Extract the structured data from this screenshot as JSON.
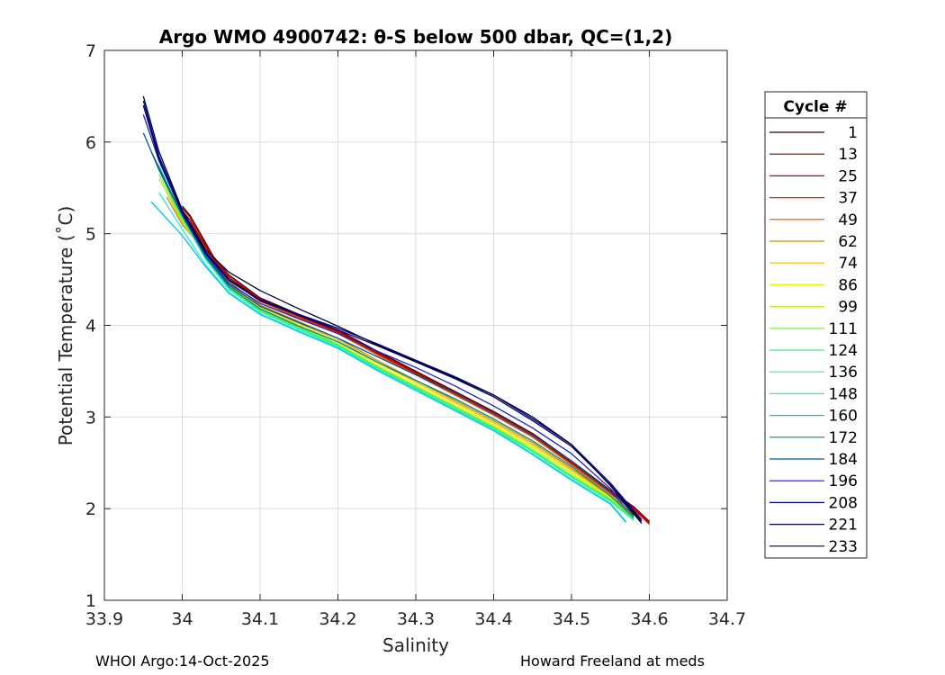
{
  "footer": {
    "left": "WHOI Argo:14-Oct-2025",
    "right": "Howard Freeland at meds"
  },
  "chart_data": {
    "type": "line",
    "title": "Argo WMO 4900742: θ-S below 500 dbar,  QC=(1,2)",
    "xlabel": "Salinity",
    "ylabel": "Potential Temperature (˚C)",
    "xlim": [
      33.9,
      34.7
    ],
    "ylim": [
      1,
      7
    ],
    "xticks": [
      33.9,
      34.0,
      34.1,
      34.2,
      34.3,
      34.4,
      34.5,
      34.6,
      34.7
    ],
    "xtick_labels": [
      "33.9",
      "34",
      "34.1",
      "34.2",
      "34.3",
      "34.4",
      "34.5",
      "34.6",
      "34.7"
    ],
    "yticks": [
      1,
      2,
      3,
      4,
      5,
      6,
      7
    ],
    "ytick_labels": [
      "1",
      "2",
      "3",
      "4",
      "5",
      "6",
      "7"
    ],
    "grid": true,
    "legend": {
      "title": "Cycle #",
      "placement": "outside-right",
      "entries": [
        "1",
        "13",
        "25",
        "37",
        "49",
        "62",
        "74",
        "86",
        "99",
        "111",
        "124",
        "136",
        "148",
        "160",
        "172",
        "184",
        "196",
        "208",
        "221",
        "233"
      ],
      "colors": [
        "#2a0000",
        "#7a0000",
        "#c80000",
        "#e02000",
        "#e45000",
        "#c89000",
        "#e0c000",
        "#f0f000",
        "#b8f020",
        "#70f040",
        "#40f070",
        "#30f0b0",
        "#20f0e0",
        "#00c8d8",
        "#008a8a",
        "#005a9a",
        "#2020c0",
        "#000090",
        "#000060",
        "#000030"
      ]
    },
    "series": [
      {
        "name": "1",
        "salinity": [
          34.0,
          34.01,
          34.02,
          34.03,
          34.04,
          34.06,
          34.1,
          34.15,
          34.2,
          34.25,
          34.3,
          34.35,
          34.4,
          34.45,
          34.5,
          34.55,
          34.58,
          34.6
        ],
        "theta": [
          5.3,
          5.2,
          5.05,
          4.9,
          4.75,
          4.55,
          4.3,
          4.12,
          3.95,
          3.72,
          3.5,
          3.28,
          3.06,
          2.82,
          2.52,
          2.2,
          2.02,
          1.86
        ]
      },
      {
        "name": "13",
        "salinity": [
          34.0,
          34.01,
          34.02,
          34.03,
          34.04,
          34.06,
          34.1,
          34.15,
          34.2,
          34.25,
          34.3,
          34.35,
          34.4,
          34.45,
          34.5,
          34.55,
          34.58,
          34.6
        ],
        "theta": [
          5.25,
          5.15,
          5.0,
          4.86,
          4.72,
          4.52,
          4.28,
          4.1,
          3.93,
          3.7,
          3.48,
          3.26,
          3.04,
          2.8,
          2.5,
          2.18,
          2.0,
          1.84
        ]
      },
      {
        "name": "25",
        "salinity": [
          34.0,
          34.01,
          34.02,
          34.03,
          34.04,
          34.06,
          34.1,
          34.15,
          34.2,
          34.25,
          34.3,
          34.35,
          34.4,
          34.45,
          34.5,
          34.55,
          34.58,
          34.6
        ],
        "theta": [
          5.28,
          5.18,
          5.03,
          4.88,
          4.74,
          4.54,
          4.29,
          4.11,
          3.94,
          3.71,
          3.49,
          3.27,
          3.05,
          2.81,
          2.51,
          2.19,
          2.01,
          1.85
        ]
      },
      {
        "name": "37",
        "salinity": [
          34.0,
          34.01,
          34.02,
          34.03,
          34.04,
          34.06,
          34.1,
          34.15,
          34.2,
          34.25,
          34.3,
          34.35,
          34.4,
          34.45,
          34.5,
          34.55,
          34.58,
          34.6
        ],
        "theta": [
          5.22,
          5.12,
          4.98,
          4.84,
          4.7,
          4.5,
          4.27,
          4.09,
          3.92,
          3.69,
          3.47,
          3.25,
          3.03,
          2.79,
          2.49,
          2.17,
          1.99,
          1.83
        ]
      },
      {
        "name": "49",
        "salinity": [
          34.0,
          34.02,
          34.04,
          34.06,
          34.1,
          34.15,
          34.2,
          34.25,
          34.3,
          34.35,
          34.4,
          34.45,
          34.5,
          34.55,
          34.58,
          34.59
        ],
        "theta": [
          5.2,
          4.97,
          4.7,
          4.5,
          4.26,
          4.08,
          3.91,
          3.68,
          3.46,
          3.24,
          3.02,
          2.78,
          2.48,
          2.16,
          1.98,
          1.86
        ]
      },
      {
        "name": "62",
        "salinity": [
          33.98,
          34.0,
          34.03,
          34.06,
          34.1,
          34.15,
          34.2,
          34.25,
          34.3,
          34.35,
          34.4,
          34.45,
          34.5,
          34.55,
          34.58
        ],
        "theta": [
          5.4,
          5.1,
          4.8,
          4.48,
          4.22,
          4.04,
          3.86,
          3.62,
          3.4,
          3.18,
          2.96,
          2.72,
          2.44,
          2.14,
          1.94
        ]
      },
      {
        "name": "74",
        "salinity": [
          33.98,
          34.0,
          34.03,
          34.06,
          34.1,
          34.15,
          34.2,
          34.25,
          34.3,
          34.35,
          34.4,
          34.45,
          34.5,
          34.55,
          34.58
        ],
        "theta": [
          5.45,
          5.12,
          4.78,
          4.46,
          4.2,
          4.02,
          3.84,
          3.6,
          3.38,
          3.16,
          2.94,
          2.7,
          2.42,
          2.13,
          1.92
        ]
      },
      {
        "name": "86",
        "salinity": [
          33.98,
          34.0,
          34.03,
          34.06,
          34.1,
          34.15,
          34.2,
          34.25,
          34.3,
          34.35,
          34.4,
          34.45,
          34.5,
          34.55,
          34.58
        ],
        "theta": [
          5.5,
          5.14,
          4.76,
          4.44,
          4.19,
          4.0,
          3.82,
          3.58,
          3.36,
          3.14,
          2.92,
          2.68,
          2.4,
          2.12,
          1.91
        ]
      },
      {
        "name": "99",
        "salinity": [
          33.97,
          34.0,
          34.03,
          34.06,
          34.1,
          34.15,
          34.2,
          34.25,
          34.3,
          34.35,
          34.4,
          34.45,
          34.5,
          34.55,
          34.58
        ],
        "theta": [
          5.6,
          5.15,
          4.75,
          4.42,
          4.18,
          3.99,
          3.8,
          3.56,
          3.34,
          3.12,
          2.9,
          2.66,
          2.38,
          2.11,
          1.9
        ]
      },
      {
        "name": "111",
        "salinity": [
          33.97,
          34.0,
          34.03,
          34.06,
          34.1,
          34.15,
          34.2,
          34.25,
          34.3,
          34.35,
          34.4,
          34.45,
          34.5,
          34.55,
          34.58
        ],
        "theta": [
          5.65,
          5.16,
          4.74,
          4.41,
          4.17,
          3.98,
          3.79,
          3.55,
          3.33,
          3.11,
          2.89,
          2.64,
          2.36,
          2.1,
          1.89
        ]
      },
      {
        "name": "124",
        "salinity": [
          33.97,
          34.0,
          34.03,
          34.06,
          34.1,
          34.15,
          34.2,
          34.25,
          34.3,
          34.35,
          34.4,
          34.45,
          34.5,
          34.55,
          34.58
        ],
        "theta": [
          5.7,
          5.17,
          4.73,
          4.4,
          4.16,
          3.97,
          3.78,
          3.54,
          3.32,
          3.1,
          2.88,
          2.63,
          2.35,
          2.09,
          1.88
        ]
      },
      {
        "name": "136",
        "salinity": [
          33.97,
          34.0,
          34.03,
          34.06,
          34.1,
          34.15,
          34.2,
          34.25,
          34.3,
          34.35,
          34.4,
          34.45,
          34.5,
          34.55,
          34.58
        ],
        "theta": [
          5.75,
          5.18,
          4.72,
          4.39,
          4.15,
          3.96,
          3.77,
          3.53,
          3.31,
          3.09,
          2.87,
          2.62,
          2.34,
          2.08,
          1.87
        ]
      },
      {
        "name": "148",
        "salinity": [
          33.97,
          34.0,
          34.03,
          34.06,
          34.1,
          34.15,
          34.2,
          34.25,
          34.3,
          34.35,
          34.4,
          34.45,
          34.5,
          34.55,
          34.57
        ],
        "theta": [
          5.45,
          5.05,
          4.66,
          4.36,
          4.13,
          3.94,
          3.76,
          3.52,
          3.3,
          3.08,
          2.86,
          2.6,
          2.32,
          2.06,
          1.86
        ]
      },
      {
        "name": "160",
        "salinity": [
          33.96,
          34.0,
          34.03,
          34.06,
          34.1,
          34.15,
          34.2,
          34.25,
          34.3,
          34.35,
          34.4,
          34.45,
          34.5,
          34.55,
          34.57
        ],
        "theta": [
          5.35,
          4.98,
          4.64,
          4.35,
          4.12,
          3.93,
          3.75,
          3.51,
          3.29,
          3.07,
          2.85,
          2.59,
          2.31,
          2.05,
          1.85
        ]
      },
      {
        "name": "172",
        "salinity": [
          33.96,
          34.0,
          34.03,
          34.06,
          34.1,
          34.15,
          34.2,
          34.25,
          34.3,
          34.35,
          34.4,
          34.45,
          34.5,
          34.55,
          34.58
        ],
        "theta": [
          5.9,
          5.2,
          4.74,
          4.42,
          4.18,
          3.99,
          3.82,
          3.6,
          3.4,
          3.2,
          2.98,
          2.74,
          2.46,
          2.14,
          1.9
        ]
      },
      {
        "name": "184",
        "salinity": [
          33.95,
          33.97,
          34.0,
          34.03,
          34.06,
          34.1,
          34.15,
          34.2,
          34.25,
          34.3,
          34.35,
          34.4,
          34.45,
          34.5,
          34.55,
          34.58
        ],
        "theta": [
          6.1,
          5.7,
          5.2,
          4.76,
          4.44,
          4.21,
          4.03,
          3.86,
          3.66,
          3.46,
          3.26,
          3.04,
          2.8,
          2.52,
          2.18,
          1.92
        ]
      },
      {
        "name": "196",
        "salinity": [
          33.95,
          33.97,
          34.0,
          34.03,
          34.06,
          34.1,
          34.15,
          34.2,
          34.25,
          34.3,
          34.35,
          34.4,
          34.45,
          34.5,
          34.55,
          34.58
        ],
        "theta": [
          6.3,
          5.8,
          5.22,
          4.78,
          4.46,
          4.24,
          4.07,
          3.91,
          3.72,
          3.54,
          3.34,
          3.12,
          2.88,
          2.6,
          2.22,
          1.94
        ]
      },
      {
        "name": "208",
        "salinity": [
          33.95,
          33.97,
          34.0,
          34.03,
          34.06,
          34.1,
          34.15,
          34.2,
          34.25,
          34.3,
          34.35,
          34.4,
          34.45,
          34.5,
          34.55,
          34.59
        ],
        "theta": [
          6.45,
          5.85,
          5.24,
          4.8,
          4.5,
          4.28,
          4.12,
          3.97,
          3.8,
          3.62,
          3.44,
          3.24,
          2.98,
          2.7,
          2.28,
          1.88
        ]
      },
      {
        "name": "221",
        "salinity": [
          33.95,
          33.97,
          34.0,
          34.03,
          34.06,
          34.1,
          34.15,
          34.2,
          34.25,
          34.3,
          34.35,
          34.4,
          34.45,
          34.5,
          34.55,
          34.59
        ],
        "theta": [
          6.4,
          5.82,
          5.23,
          4.79,
          4.49,
          4.27,
          4.11,
          3.95,
          3.78,
          3.6,
          3.42,
          3.22,
          2.96,
          2.68,
          2.26,
          1.86
        ]
      },
      {
        "name": "233",
        "salinity": [
          33.95,
          33.97,
          34.0,
          34.03,
          34.06,
          34.1,
          34.15,
          34.2,
          34.25,
          34.3,
          34.35,
          34.4,
          34.45,
          34.5,
          34.55,
          34.59
        ],
        "theta": [
          6.5,
          5.9,
          5.26,
          4.82,
          4.58,
          4.38,
          4.18,
          3.99,
          3.79,
          3.61,
          3.43,
          3.24,
          3.0,
          2.7,
          2.25,
          1.84
        ]
      }
    ]
  }
}
